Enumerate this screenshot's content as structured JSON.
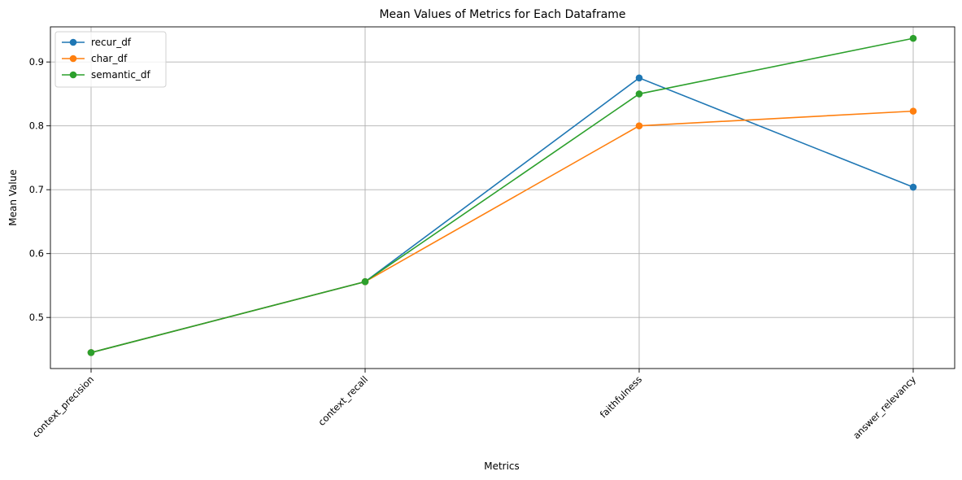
{
  "chart_data": {
    "type": "line",
    "title": "Mean Values of Metrics for Each Dataframe",
    "xlabel": "Metrics",
    "ylabel": "Mean Value",
    "categories": [
      "context_precision",
      "context_recall",
      "faithfulness",
      "answer_relevancy"
    ],
    "ylim": [
      0.42,
      0.955
    ],
    "yticks": [
      0.5,
      0.6,
      0.7,
      0.8,
      0.9
    ],
    "yticklabels": [
      "0.5",
      "0.6",
      "0.7",
      "0.8",
      "0.9"
    ],
    "grid": true,
    "legend_position": "upper-left",
    "series": [
      {
        "name": "recur_df",
        "color": "#1f77b4",
        "marker": "circle",
        "values": [
          0.445,
          0.556,
          0.875,
          0.704
        ]
      },
      {
        "name": "char_df",
        "color": "#ff7f0e",
        "marker": "circle",
        "values": [
          0.445,
          0.556,
          0.8,
          0.823
        ]
      },
      {
        "name": "semantic_df",
        "color": "#2ca02c",
        "marker": "circle",
        "values": [
          0.445,
          0.556,
          0.85,
          0.937
        ]
      }
    ]
  }
}
